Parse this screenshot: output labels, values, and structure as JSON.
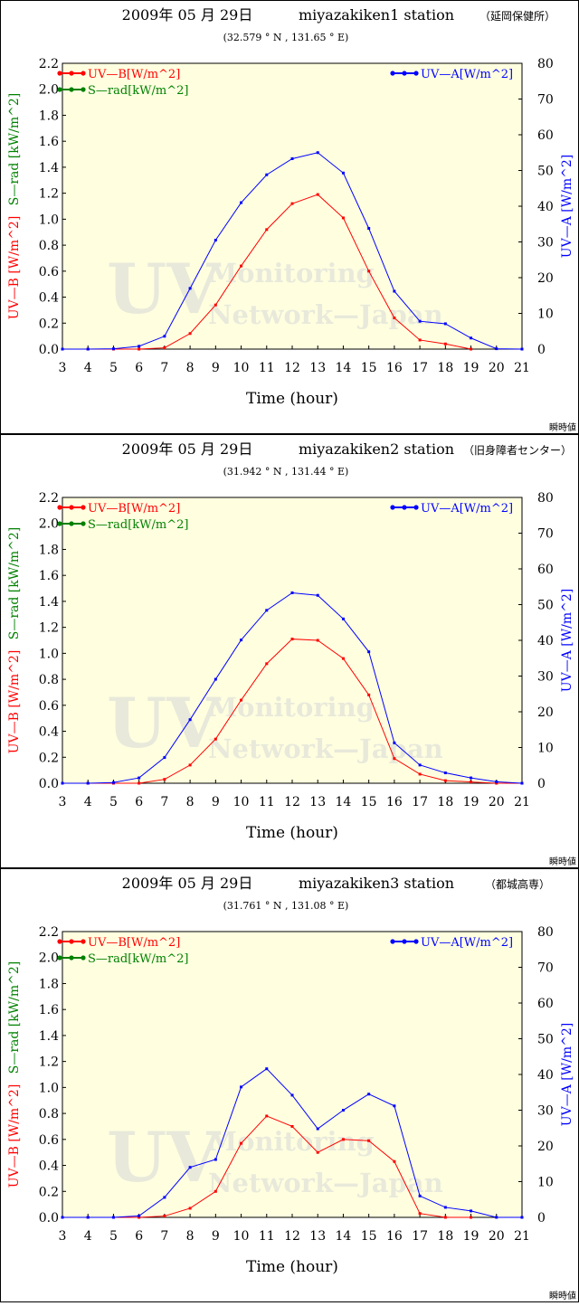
{
  "note_label": "瞬時値",
  "legend": {
    "uvb": "UV—B[W/m^2]",
    "srad": "S—rad[kW/m^2]",
    "uva": "UV—A[W/m^2]"
  },
  "axis": {
    "xlabel": "Time (hour)",
    "ylabel_uvb": "UV—B [W/m^2]",
    "ylabel_srad": "S—rad [kW/m^2]",
    "ylabel_uva": "UV—A [W/m^2]"
  },
  "watermark": {
    "line1": "UV",
    "line2": "Monitoring",
    "line3": "Network—Japan"
  },
  "colors": {
    "uvb": "#ff0000",
    "srad": "#008000",
    "uva": "#0000ff",
    "plot_bg": "#ffffe0"
  },
  "chart_data": [
    {
      "type": "line",
      "date": "2009年  05 月  29日",
      "station": "miyazakiken1  station",
      "station_jp": "（延岡保健所）",
      "coords": "(32.579 ° N ,  131.65 ° E)",
      "x": [
        3,
        4,
        5,
        6,
        7,
        8,
        9,
        10,
        11,
        12,
        13,
        14,
        15,
        16,
        17,
        18,
        19,
        20,
        21
      ],
      "xlim": [
        3,
        21
      ],
      "ylim_left": [
        0,
        2.2
      ],
      "ylim_right": [
        0,
        80
      ],
      "left_ticks": [
        "0.0",
        "0.2",
        "0.4",
        "0.6",
        "0.8",
        "1.0",
        "1.2",
        "1.4",
        "1.6",
        "1.8",
        "2.0",
        "2.2"
      ],
      "right_ticks": [
        "0",
        "10",
        "20",
        "30",
        "40",
        "50",
        "60",
        "70",
        "80"
      ],
      "series": [
        {
          "name": "UV—B[W/m^2]",
          "axis": "left",
          "values": [
            0,
            0,
            0,
            0,
            0.01,
            0.12,
            0.34,
            0.64,
            0.92,
            1.12,
            1.19,
            1.01,
            0.6,
            0.24,
            0.07,
            0.04,
            0,
            null,
            null
          ]
        },
        {
          "name": "UV—A[W/m^2]",
          "axis": "right",
          "values": [
            0,
            0,
            0.1,
            0.8,
            3.6,
            17,
            30.5,
            41,
            48.8,
            53.3,
            55,
            49.3,
            33.8,
            16.2,
            7.8,
            7.1,
            3.1,
            0.1,
            0
          ]
        }
      ]
    },
    {
      "type": "line",
      "date": "2009年  05 月  29日",
      "station": "miyazakiken2  station",
      "station_jp": "（旧身障者センター）",
      "coords": "(31.942 ° N ,  131.44 ° E)",
      "x": [
        3,
        4,
        5,
        6,
        7,
        8,
        9,
        10,
        11,
        12,
        13,
        14,
        15,
        16,
        17,
        18,
        19,
        20,
        21
      ],
      "xlim": [
        3,
        21
      ],
      "ylim_left": [
        0,
        2.2
      ],
      "ylim_right": [
        0,
        80
      ],
      "left_ticks": [
        "0.0",
        "0.2",
        "0.4",
        "0.6",
        "0.8",
        "1.0",
        "1.2",
        "1.4",
        "1.6",
        "1.8",
        "2.0",
        "2.2"
      ],
      "right_ticks": [
        "0",
        "10",
        "20",
        "30",
        "40",
        "50",
        "60",
        "70",
        "80"
      ],
      "series": [
        {
          "name": "UV—B[W/m^2]",
          "axis": "left",
          "values": [
            0,
            0,
            0,
            0,
            0.03,
            0.14,
            0.34,
            0.64,
            0.92,
            1.11,
            1.1,
            0.96,
            0.68,
            0.19,
            0.07,
            0.02,
            0.01,
            0,
            0
          ]
        },
        {
          "name": "UV—A[W/m^2]",
          "axis": "right",
          "values": [
            0,
            0,
            0.2,
            1.5,
            7.2,
            17.8,
            29.1,
            40.1,
            48.4,
            53.3,
            52.6,
            46,
            36.8,
            11.3,
            5.1,
            2.9,
            1.5,
            0.4,
            0
          ]
        }
      ]
    },
    {
      "type": "line",
      "date": "2009年  05 月  29日",
      "station": "miyazakiken3  station",
      "station_jp": "（都城高専）",
      "coords": "(31.761 ° N ,  131.08 ° E)",
      "x": [
        3,
        4,
        5,
        6,
        7,
        8,
        9,
        10,
        11,
        12,
        13,
        14,
        15,
        16,
        17,
        18,
        19,
        20,
        21
      ],
      "xlim": [
        3,
        21
      ],
      "ylim_left": [
        0,
        2.2
      ],
      "ylim_right": [
        0,
        80
      ],
      "left_ticks": [
        "0.0",
        "0.2",
        "0.4",
        "0.6",
        "0.8",
        "1.0",
        "1.2",
        "1.4",
        "1.6",
        "1.8",
        "2.0",
        "2.2"
      ],
      "right_ticks": [
        "0",
        "10",
        "20",
        "30",
        "40",
        "50",
        "60",
        "70",
        "80"
      ],
      "series": [
        {
          "name": "UV—B[W/m^2]",
          "axis": "left",
          "values": [
            0,
            0,
            0,
            0,
            0.01,
            0.07,
            0.2,
            0.57,
            0.78,
            0.7,
            0.5,
            0.6,
            0.59,
            0.43,
            0.03,
            0,
            0,
            null,
            null
          ]
        },
        {
          "name": "UV—A[W/m^2]",
          "axis": "right",
          "values": [
            0,
            0,
            0,
            0.4,
            5.6,
            14,
            16.2,
            36.5,
            41.6,
            34.2,
            24.8,
            30,
            34.5,
            31.2,
            6,
            2.8,
            1.8,
            0,
            0
          ]
        }
      ]
    }
  ]
}
